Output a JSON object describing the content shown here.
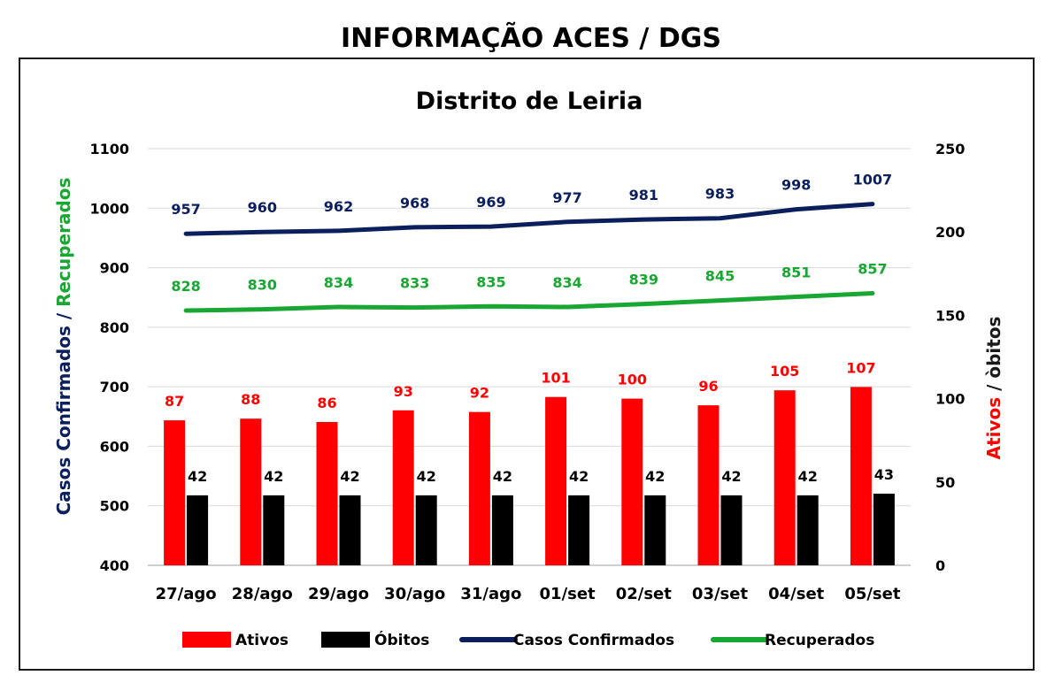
{
  "page": {
    "title": "INFORMAÇÃO ACES / DGS"
  },
  "chart_data": {
    "type": "bar",
    "title": "Distrito de Leiria",
    "categories": [
      "27/ago",
      "28/ago",
      "29/ago",
      "30/ago",
      "31/ago",
      "01/set",
      "02/set",
      "03/set",
      "04/set",
      "05/set"
    ],
    "left_axis": {
      "label_part1": "Casos Confirmados /",
      "label_part2": "Recuperados",
      "label_part1_color": "#0b1f5c",
      "label_part2_color": "#1aa632",
      "range": [
        400,
        1100
      ],
      "ticks": [
        "400",
        "500",
        "600",
        "700",
        "800",
        "900",
        "1000",
        "1100"
      ]
    },
    "right_axis": {
      "label_part1": "Ativos",
      "label_part2": "/ òbitos",
      "label_part1_color": "#ff0000",
      "label_part2_color": "#1a1a1a",
      "range": [
        0,
        250
      ],
      "ticks": [
        "0",
        "50",
        "100",
        "150",
        "200",
        "250"
      ]
    },
    "grid": true,
    "legend_position": "bottom",
    "series": [
      {
        "name": "Ativos",
        "kind": "bar",
        "axis": "right",
        "color": "#ff0000",
        "values": [
          87,
          88,
          86,
          93,
          92,
          101,
          100,
          96,
          105,
          107
        ]
      },
      {
        "name": "Óbitos",
        "kind": "bar",
        "axis": "right",
        "color": "#000000",
        "values": [
          42,
          42,
          42,
          42,
          42,
          42,
          42,
          42,
          42,
          43
        ]
      },
      {
        "name": "Casos Confirmados",
        "kind": "line",
        "axis": "left",
        "color": "#0b1f5c",
        "values": [
          957,
          960,
          962,
          968,
          969,
          977,
          981,
          983,
          998,
          1007
        ]
      },
      {
        "name": "Recuperados",
        "kind": "line",
        "axis": "left",
        "color": "#1aa632",
        "values": [
          828,
          830,
          834,
          833,
          835,
          834,
          839,
          845,
          851,
          857
        ]
      }
    ]
  }
}
